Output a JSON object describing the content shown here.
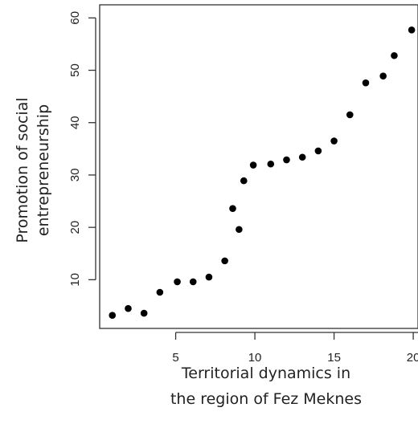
{
  "chart_data": {
    "type": "scatter",
    "title": "",
    "xlabel": [
      "Territorial dynamics in",
      "the region of Fez Meknes"
    ],
    "ylabel": [
      "Promotion of social",
      "entrepreneurship"
    ],
    "xlim": [
      0.2,
      20.3
    ],
    "ylim": [
      0.7,
      62.5
    ],
    "xticks": [
      5,
      10,
      15,
      20
    ],
    "yticks": [
      10,
      20,
      30,
      40,
      50,
      60
    ],
    "grid": false,
    "legend": "none",
    "marker_color": "#000000",
    "points": [
      {
        "x": 1.0,
        "y": 3.2
      },
      {
        "x": 2.0,
        "y": 4.5
      },
      {
        "x": 3.0,
        "y": 3.6
      },
      {
        "x": 4.0,
        "y": 7.6
      },
      {
        "x": 5.1,
        "y": 9.6
      },
      {
        "x": 6.1,
        "y": 9.6
      },
      {
        "x": 7.1,
        "y": 10.5
      },
      {
        "x": 8.1,
        "y": 13.6
      },
      {
        "x": 8.6,
        "y": 23.6
      },
      {
        "x": 9.0,
        "y": 19.6
      },
      {
        "x": 9.3,
        "y": 28.9
      },
      {
        "x": 9.9,
        "y": 31.9
      },
      {
        "x": 11.0,
        "y": 32.1
      },
      {
        "x": 12.0,
        "y": 32.9
      },
      {
        "x": 13.0,
        "y": 33.4
      },
      {
        "x": 14.0,
        "y": 34.6
      },
      {
        "x": 15.0,
        "y": 36.5
      },
      {
        "x": 16.0,
        "y": 41.5
      },
      {
        "x": 17.0,
        "y": 47.6
      },
      {
        "x": 18.1,
        "y": 48.9
      },
      {
        "x": 18.8,
        "y": 52.8
      },
      {
        "x": 19.9,
        "y": 57.7
      }
    ]
  }
}
